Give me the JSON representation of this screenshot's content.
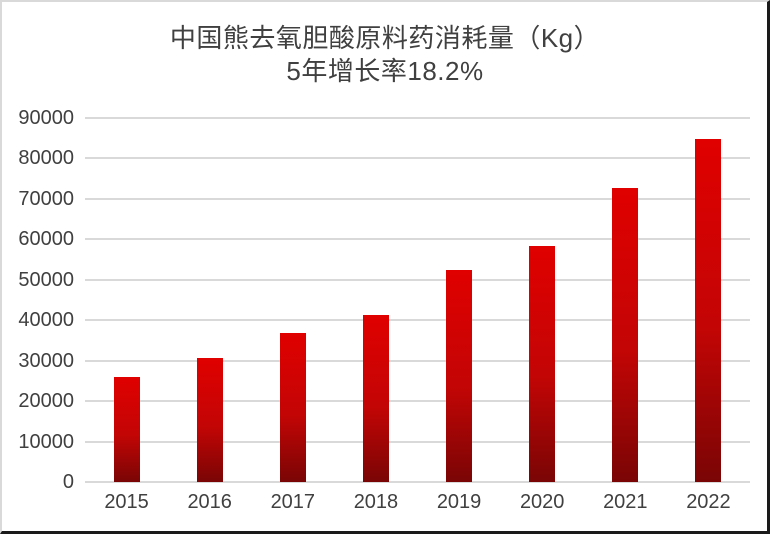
{
  "chart_data": {
    "type": "bar",
    "title": "中国熊去氧胆酸原料药消耗量（Kg）",
    "subtitle": "5年增长率18.2%",
    "categories": [
      "2015",
      "2016",
      "2017",
      "2018",
      "2019",
      "2020",
      "2021",
      "2022"
    ],
    "values": [
      26000,
      30700,
      36800,
      41200,
      52500,
      58300,
      72700,
      84800
    ],
    "xlabel": "",
    "ylabel": "",
    "ylim": [
      0,
      90000
    ],
    "ytick_step": 10000,
    "yticks": [
      "0",
      "10000",
      "20000",
      "30000",
      "40000",
      "50000",
      "60000",
      "70000",
      "80000",
      "90000"
    ],
    "grid": true,
    "legend": "none",
    "colors": {
      "bar_gradient_top": "#e00000",
      "bar_gradient_mid": "#c30505",
      "bar_gradient_bottom": "#7a0505",
      "gridline": "#d9d9d9",
      "axis_text": "#404040",
      "title_text": "#404040"
    }
  }
}
